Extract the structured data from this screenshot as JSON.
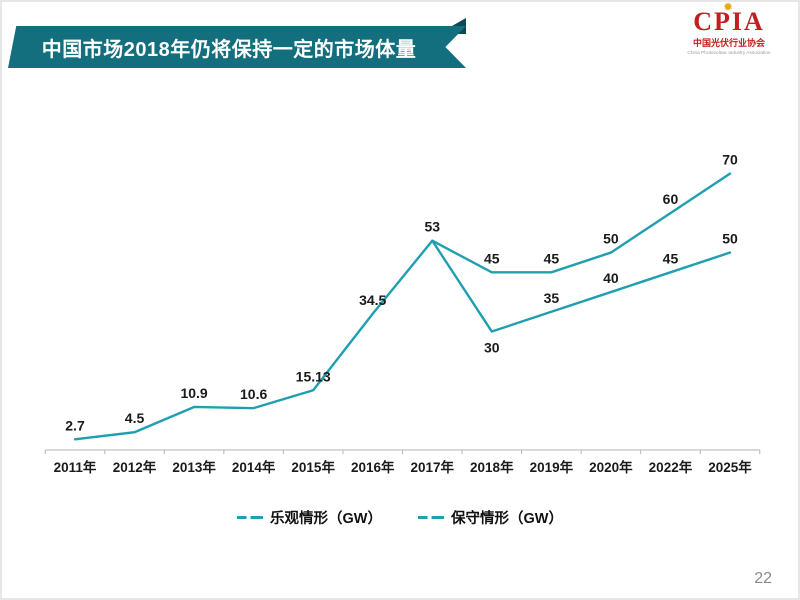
{
  "slide": {
    "title": "中国市场2018年仍将保持一定的市场体量",
    "page_number": "22"
  },
  "logo": {
    "acronym": "CPIA",
    "org_name": "中国光伏行业协会",
    "org_subtext": "China Photovoltaic Industry Association"
  },
  "icons": {
    "sunburst": "✹"
  },
  "chart_data": {
    "type": "line",
    "title": "",
    "xlabel": "",
    "ylabel": "",
    "categories": [
      "2011年",
      "2012年",
      "2013年",
      "2014年",
      "2015年",
      "2016年",
      "2017年",
      "2018年",
      "2019年",
      "2020年",
      "2022年",
      "2025年"
    ],
    "series": [
      {
        "name": "乐观情形（GW）",
        "values": [
          2.7,
          4.5,
          10.9,
          10.6,
          15.13,
          34.5,
          53,
          45,
          45,
          50,
          60,
          70
        ],
        "labels": [
          "2.7",
          "4.5",
          "10.9",
          "10.6",
          "15.13",
          "34.5",
          "53",
          "45",
          "45",
          "50",
          "60",
          "70"
        ],
        "label_below_indices": []
      },
      {
        "name": "保守情形（GW）",
        "values": [
          null,
          null,
          null,
          null,
          null,
          null,
          53,
          30,
          35,
          40,
          45,
          50
        ],
        "labels": [
          null,
          null,
          null,
          null,
          null,
          null,
          null,
          "30",
          "35",
          "40",
          "45",
          "50"
        ],
        "label_below_indices": [
          7
        ]
      }
    ],
    "line_color": "#1f9fb0",
    "label_color": "#1a1a1a",
    "axis_color": "#b3b3b3",
    "ylim": [
      0,
      78
    ],
    "grid": false,
    "data_labels": true,
    "legend_position": "bottom"
  }
}
